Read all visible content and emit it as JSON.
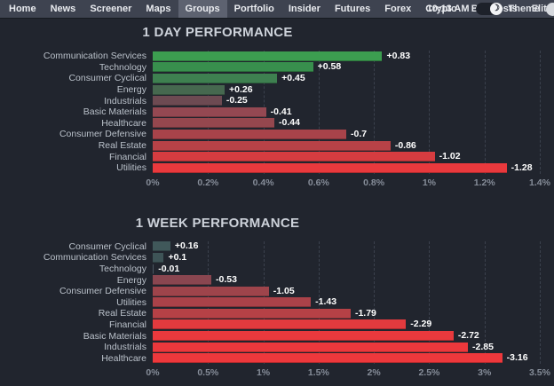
{
  "nav": {
    "items": [
      {
        "label": "Home",
        "active": false
      },
      {
        "label": "News",
        "active": false
      },
      {
        "label": "Screener",
        "active": false
      },
      {
        "label": "Maps",
        "active": false
      },
      {
        "label": "Groups",
        "active": true
      },
      {
        "label": "Portfolio",
        "active": false
      },
      {
        "label": "Insider",
        "active": false
      },
      {
        "label": "Futures",
        "active": false
      },
      {
        "label": "Forex",
        "active": false
      },
      {
        "label": "Crypto",
        "active": false
      },
      {
        "label": "Backtests",
        "active": false
      },
      {
        "label": "Elite",
        "active": false
      }
    ],
    "clock": "10:13 AM",
    "theme_label": "Theme",
    "theme_toggle_icon": "crescent-moon",
    "help_icon": "circle"
  },
  "colors": {
    "positive_green": "#3c9e50",
    "negative_red": "#e9393d",
    "neutral_gray": "#40585a",
    "background": "#21252e",
    "nav_background": "#3e4350",
    "nav_active_background": "#5d6270"
  },
  "chart_data": [
    {
      "type": "bar",
      "orientation": "horizontal",
      "title": "1 DAY PERFORMANCE",
      "note": "bar length = absolute value of % change; color encodes sign/rank",
      "categories": [
        "Communication Services",
        "Technology",
        "Consumer Cyclical",
        "Energy",
        "Industrials",
        "Basic Materials",
        "Healthcare",
        "Consumer Defensive",
        "Real Estate",
        "Financial",
        "Utilities"
      ],
      "values": [
        0.83,
        0.58,
        0.45,
        0.26,
        -0.25,
        -0.41,
        -0.44,
        -0.7,
        -0.86,
        -1.02,
        -1.28
      ],
      "labels": [
        "+0.83",
        "+0.58",
        "+0.45",
        "+0.26",
        "-0.25",
        "-0.41",
        "-0.44",
        "-0.7",
        "-0.86",
        "-1.02",
        "-1.28"
      ],
      "bar_colors": [
        "#3c9e50",
        "#388f4d",
        "#3e8050",
        "#46684f",
        "#6d4a52",
        "#944852",
        "#95474e",
        "#a8434a",
        "#b84247",
        "#d63c40",
        "#e9393d"
      ],
      "x_ticks": [
        "0%",
        "0.2%",
        "0.4%",
        "0.6%",
        "0.8%",
        "1%",
        "1.2%",
        "1.4%"
      ],
      "xlim": [
        0,
        1.4
      ],
      "xlabel": "",
      "ylabel": "",
      "grid": "dashed-vertical",
      "legend": "none"
    },
    {
      "type": "bar",
      "orientation": "horizontal",
      "title": "1 WEEK PERFORMANCE",
      "note": "bar length = absolute value of % change; color encodes sign/rank",
      "categories": [
        "Consumer Cyclical",
        "Communication Services",
        "Technology",
        "Energy",
        "Consumer Defensive",
        "Utilities",
        "Real Estate",
        "Financial",
        "Basic Materials",
        "Industrials",
        "Healthcare"
      ],
      "values": [
        0.16,
        0.1,
        -0.01,
        -0.53,
        -1.05,
        -1.43,
        -1.79,
        -2.29,
        -2.72,
        -2.85,
        -3.16
      ],
      "labels": [
        "+0.16",
        "+0.1",
        "-0.01",
        "-0.53",
        "-1.05",
        "-1.43",
        "-1.79",
        "-2.29",
        "-2.72",
        "-2.85",
        "-3.16"
      ],
      "bar_colors": [
        "#40585a",
        "#3e5457",
        "#4a5560",
        "#8a4650",
        "#9e444b",
        "#aa4249",
        "#b64146",
        "#e23a3e",
        "#e9393d",
        "#ec383c",
        "#ee383c"
      ],
      "x_ticks": [
        "0%",
        "0.5%",
        "1%",
        "1.5%",
        "2%",
        "2.5%",
        "3%",
        "3.5%"
      ],
      "xlim": [
        0,
        3.5
      ],
      "xlabel": "",
      "ylabel": "",
      "grid": "dashed-vertical",
      "legend": "none"
    }
  ]
}
